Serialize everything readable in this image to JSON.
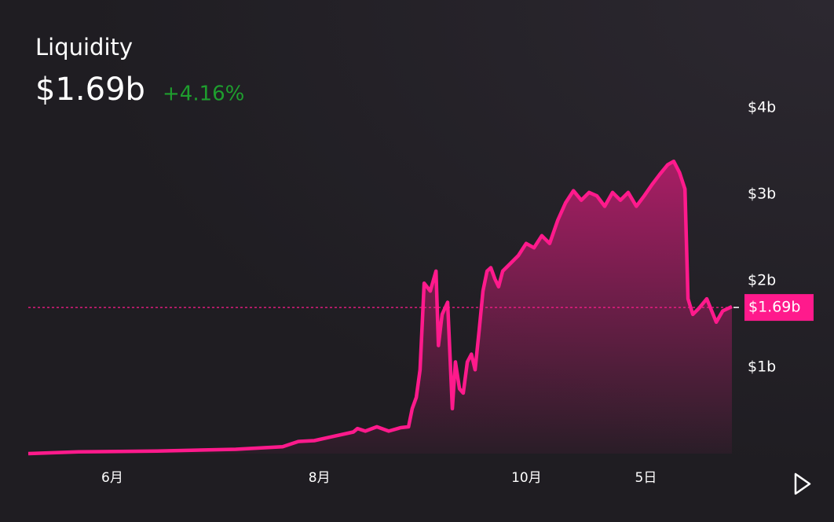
{
  "chart_data": {
    "type": "area",
    "title": "Liquidity",
    "headline_value": "$1.69b",
    "change": "+4.16%",
    "color": "#ff1a8c",
    "change_color": "#1e9e2e",
    "current": {
      "value": 1.69,
      "label": "$1.69b"
    },
    "x": [
      0,
      14.8,
      37.9,
      61.0,
      74.8,
      79.4,
      84.1,
      88.7,
      95.6,
      96.8,
      99.1,
      102.5,
      106.0,
      109.5,
      111.8,
      112.9,
      114.1,
      115.2,
      116.4,
      118.2,
      119.9,
      120.6,
      121.7,
      123.3,
      124.7,
      125.6,
      126.8,
      127.9,
      129.1,
      130.3,
      131.4,
      132.6,
      133.7,
      134.9,
      136.0,
      137.2,
      138.3,
      139.5,
      141.8,
      144.1,
      146.4,
      148.7,
      151.0,
      153.3,
      155.7,
      158.0,
      160.3,
      162.6,
      164.9,
      167.2,
      169.5,
      171.8,
      174.1,
      176.4,
      178.8,
      181.1,
      183.4,
      185.7,
      188.0,
      189.8,
      191.5,
      193.1,
      194.0,
      195.4,
      197.2,
      199.5,
      202.3,
      204.2,
      206.9
    ],
    "values": [
      0.0,
      0.02,
      0.03,
      0.05,
      0.08,
      0.14,
      0.15,
      0.19,
      0.25,
      0.29,
      0.26,
      0.31,
      0.26,
      0.3,
      0.31,
      0.52,
      0.65,
      0.97,
      1.97,
      1.88,
      2.11,
      1.25,
      1.61,
      1.75,
      0.52,
      1.06,
      0.75,
      0.7,
      1.06,
      1.15,
      0.97,
      1.43,
      1.88,
      2.11,
      2.15,
      2.02,
      1.93,
      2.11,
      2.2,
      2.29,
      2.43,
      2.38,
      2.52,
      2.43,
      2.7,
      2.9,
      3.04,
      2.93,
      3.02,
      2.98,
      2.86,
      3.02,
      2.93,
      3.02,
      2.86,
      2.98,
      3.11,
      3.23,
      3.34,
      3.38,
      3.25,
      3.06,
      1.79,
      1.61,
      1.68,
      1.79,
      1.52,
      1.65,
      1.7
    ],
    "xlim": [
      0,
      206.9
    ],
    "xticks": [
      {
        "value": 24.7,
        "label": "6月"
      },
      {
        "value": 85.6,
        "label": "8月"
      },
      {
        "value": 146.5,
        "label": "10月"
      },
      {
        "value": 181.6,
        "label": "5日"
      }
    ],
    "ylim": [
      0,
      4
    ],
    "yticks": [
      {
        "value": 1,
        "label": "$1b"
      },
      {
        "value": 2,
        "label": "$2b"
      },
      {
        "value": 3,
        "label": "$3b"
      },
      {
        "value": 4,
        "label": "$4b"
      }
    ]
  }
}
